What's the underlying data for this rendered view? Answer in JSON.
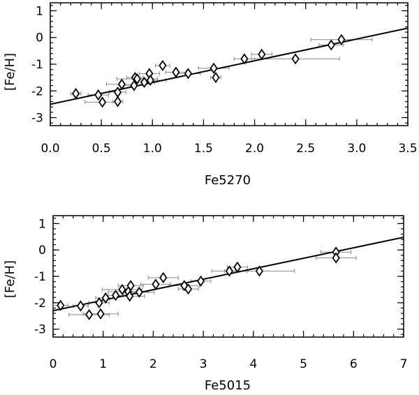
{
  "chart_data": [
    {
      "type": "scatter",
      "title": "",
      "xlabel": "Fe5270",
      "ylabel": "[Fe/H]",
      "xlim": [
        0.0,
        3.5
      ],
      "ylim": [
        -3.3,
        1.3
      ],
      "x_major_ticks": [
        0.0,
        0.5,
        1.0,
        1.5,
        2.0,
        2.5,
        3.0,
        3.5
      ],
      "x_tick_labels": [
        "0.0",
        "0.5",
        "1.0",
        "1.5",
        "2.0",
        "2.5",
        "3.0",
        "3.5"
      ],
      "x_minor_step": 0.1,
      "y_major_ticks": [
        -3,
        -2,
        -1,
        0,
        1
      ],
      "y_tick_labels": [
        "-3",
        "-2",
        "-1",
        "0",
        "1"
      ],
      "y_minor_step": 0.2,
      "grid": false,
      "marker": "diamond",
      "fit_line": {
        "x": [
          0.0,
          3.5
        ],
        "y": [
          -2.5,
          0.35
        ]
      },
      "points": [
        {
          "x": 0.25,
          "y": -2.1,
          "xerr": 0.05
        },
        {
          "x": 0.47,
          "y": -2.15,
          "xerr": 0.1
        },
        {
          "x": 0.51,
          "y": -2.42,
          "xerr": 0.17
        },
        {
          "x": 0.66,
          "y": -2.4,
          "xerr": 0.05
        },
        {
          "x": 0.66,
          "y": -2.05,
          "xerr": 0.08
        },
        {
          "x": 0.7,
          "y": -1.75,
          "xerr": 0.15
        },
        {
          "x": 0.82,
          "y": -1.8,
          "xerr": 0.1
        },
        {
          "x": 0.83,
          "y": -1.5,
          "xerr": 0.08
        },
        {
          "x": 0.85,
          "y": -1.55,
          "xerr": 0.2
        },
        {
          "x": 0.92,
          "y": -1.68,
          "xerr": 0.1
        },
        {
          "x": 0.97,
          "y": -1.35,
          "xerr": 0.1
        },
        {
          "x": 0.98,
          "y": -1.6,
          "xerr": 0.15
        },
        {
          "x": 1.1,
          "y": -1.05,
          "xerr": 0.07
        },
        {
          "x": 1.23,
          "y": -1.3,
          "xerr": 0.1
        },
        {
          "x": 1.35,
          "y": -1.35,
          "xerr": 0.12
        },
        {
          "x": 1.6,
          "y": -1.15,
          "xerr": 0.15
        },
        {
          "x": 1.62,
          "y": -1.5,
          "xerr": 0.05
        },
        {
          "x": 1.9,
          "y": -0.8,
          "xerr": 0.1
        },
        {
          "x": 2.07,
          "y": -0.63,
          "xerr": 0.1
        },
        {
          "x": 2.4,
          "y": -0.8,
          "xerr": 0.43
        },
        {
          "x": 2.75,
          "y": -0.28,
          "xerr": 0.12
        },
        {
          "x": 2.85,
          "y": -0.08,
          "xerr": 0.3
        }
      ]
    },
    {
      "type": "scatter",
      "title": "",
      "xlabel": "Fe5015",
      "ylabel": "[Fe/H]",
      "xlim": [
        0,
        7
      ],
      "ylim": [
        -3.3,
        1.3
      ],
      "x_major_ticks": [
        0,
        1,
        2,
        3,
        4,
        5,
        6,
        7
      ],
      "x_tick_labels": [
        "0",
        "1",
        "2",
        "3",
        "4",
        "5",
        "6",
        "7"
      ],
      "x_minor_step": 0.2,
      "y_major_ticks": [
        -3,
        -2,
        -1,
        0,
        1
      ],
      "y_tick_labels": [
        "-3",
        "-2",
        "-1",
        "0",
        "1"
      ],
      "y_minor_step": 0.2,
      "grid": false,
      "marker": "diamond",
      "fit_line": {
        "x": [
          0.0,
          7.0
        ],
        "y": [
          -2.3,
          0.48
        ]
      },
      "points": [
        {
          "x": 0.15,
          "y": -2.1,
          "xerr": 0.15
        },
        {
          "x": 0.55,
          "y": -2.12,
          "xerr": 0.15
        },
        {
          "x": 0.72,
          "y": -2.45,
          "xerr": 0.4
        },
        {
          "x": 0.92,
          "y": -2.0,
          "xerr": 0.2
        },
        {
          "x": 0.95,
          "y": -2.42,
          "xerr": 0.35
        },
        {
          "x": 1.05,
          "y": -1.82,
          "xerr": 0.2
        },
        {
          "x": 1.25,
          "y": -1.72,
          "xerr": 0.15
        },
        {
          "x": 1.38,
          "y": -1.5,
          "xerr": 0.4
        },
        {
          "x": 1.5,
          "y": -1.58,
          "xerr": 0.4
        },
        {
          "x": 1.53,
          "y": -1.75,
          "xerr": 0.3
        },
        {
          "x": 1.55,
          "y": -1.35,
          "xerr": 0.25
        },
        {
          "x": 1.72,
          "y": -1.6,
          "xerr": 0.3
        },
        {
          "x": 2.05,
          "y": -1.3,
          "xerr": 0.3
        },
        {
          "x": 2.2,
          "y": -1.05,
          "xerr": 0.3
        },
        {
          "x": 2.62,
          "y": -1.35,
          "xerr": 0.3
        },
        {
          "x": 2.7,
          "y": -1.48,
          "xerr": 0.2
        },
        {
          "x": 2.95,
          "y": -1.18,
          "xerr": 0.2
        },
        {
          "x": 3.52,
          "y": -0.8,
          "xerr": 0.35
        },
        {
          "x": 3.68,
          "y": -0.65,
          "xerr": 0.2
        },
        {
          "x": 4.12,
          "y": -0.8,
          "xerr": 0.7
        },
        {
          "x": 5.65,
          "y": -0.08,
          "xerr": 0.3
        },
        {
          "x": 5.65,
          "y": -0.3,
          "xerr": 0.4
        }
      ]
    }
  ]
}
